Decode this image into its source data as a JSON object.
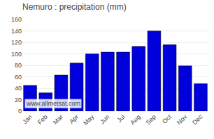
{
  "chart_data": {
    "type": "bar",
    "title": "Nemuro : precipitation (mm)",
    "categories": [
      "Jan",
      "Feb",
      "Mar",
      "Apr",
      "May",
      "Jun",
      "Jul",
      "Aug",
      "Sep",
      "Oct",
      "Nov",
      "Dec"
    ],
    "values": [
      45,
      32,
      63,
      84,
      100,
      103,
      103,
      113,
      140,
      116,
      79,
      48
    ],
    "color": "#0000dd",
    "ylim": [
      0,
      160
    ],
    "yticks": [
      0,
      20,
      40,
      60,
      80,
      100,
      120,
      140,
      160
    ],
    "grid": true,
    "annotations": [
      "www.allmetsat.com"
    ]
  }
}
